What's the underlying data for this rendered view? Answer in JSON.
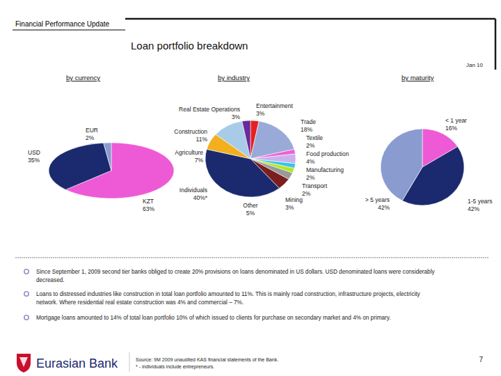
{
  "header": {
    "section": "Financial Performance Update",
    "title": "Loan portfolio breakdown",
    "date": "Jan 10"
  },
  "chart_data": [
    {
      "type": "pie",
      "title": "by currency",
      "categories": [
        "KZT",
        "USD",
        "EUR"
      ],
      "values": [
        63,
        35,
        2
      ],
      "value_labels": [
        "63%",
        "35%",
        "2%"
      ],
      "colors": [
        "#ee5ad6",
        "#1b2a6e",
        "#8a9bd0"
      ],
      "data_labels": true
    },
    {
      "type": "pie",
      "title": "by industry",
      "categories": [
        "Entertainment",
        "Trade",
        "Textile",
        "Food production",
        "Manufacturing",
        "Transport",
        "Mining",
        "Other",
        "Individuals",
        "Agriculture",
        "Construction",
        "Real Estate Operations"
      ],
      "values": [
        3,
        18,
        2,
        4,
        2,
        2,
        3,
        5,
        40,
        7,
        11,
        3
      ],
      "value_labels": [
        "3%",
        "18%",
        "2%",
        "4%",
        "2%",
        "2%",
        "3%",
        "5%",
        "40%*",
        "7%",
        "11%",
        "3%"
      ],
      "colors": [
        "#e62020",
        "#9aaad8",
        "#f060d8",
        "#c9b2ec",
        "#33c6ea",
        "#b5e61d",
        "#9a9a9a",
        "#7b1e1e",
        "#1b2a6e",
        "#f2b01e",
        "#a8cce8",
        "#6a2a9a"
      ],
      "data_labels": true
    },
    {
      "type": "pie",
      "title": "by maturity",
      "categories": [
        "< 1 year",
        "1-5 years",
        "> 5 years"
      ],
      "values": [
        16,
        42,
        42
      ],
      "value_labels": [
        "16%",
        "42%",
        "42%"
      ],
      "colors": [
        "#ee5ad6",
        "#1b2a6e",
        "#8a9bd0"
      ],
      "data_labels": true
    }
  ],
  "notes": [
    [
      "Since September 1, 2009 second tier banks obliged to create 20% provisions on loans denominated in US dollars. USD denominated loans were considerably",
      "decreased."
    ],
    [
      "Loans to distressed industries like construction in total loan portfolio amounted to 11%.  This is mainly road construction, infrastructure projects, electricity",
      "network. Where residential real estate construction was 4% and commercial – 7%."
    ],
    [
      "Mortgage loans amounted to 14% of total loan portfolio 10% of which issued to clients for purchase on secondary market and 4% on primary."
    ]
  ],
  "footer": {
    "logo": "Eurasian Bank",
    "source": "Source: 9M 2009 unaudited KAS financial statements of the Bank.",
    "footnote": "* - individuals include entrepreneurs.",
    "page": 7
  }
}
